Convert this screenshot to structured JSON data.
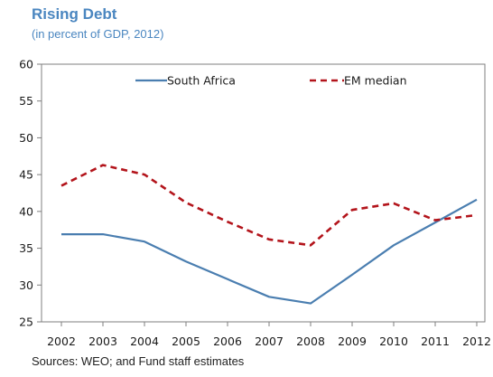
{
  "chart_data": {
    "type": "line",
    "title": "Rising Debt",
    "subtitle": "(in percent of GDP, 2012)",
    "source": "Sources: WEO; and Fund staff estimates",
    "x": [
      "2002",
      "2003",
      "2004",
      "2005",
      "2006",
      "2007",
      "2008",
      "2009",
      "2010",
      "2011",
      "2012"
    ],
    "ylim": [
      25,
      60
    ],
    "yticks": [
      25,
      30,
      35,
      40,
      45,
      50,
      55,
      60
    ],
    "grid": false,
    "legend_position": "top",
    "series": [
      {
        "name": "South Africa",
        "color": "#4a7eb0",
        "style": "solid",
        "values": [
          36.9,
          36.9,
          35.9,
          33.2,
          30.8,
          28.4,
          27.5,
          31.4,
          35.4,
          38.5,
          41.6
        ]
      },
      {
        "name": "EM median",
        "color": "#b3141b",
        "style": "dashed",
        "values": [
          43.5,
          46.3,
          45.0,
          41.2,
          38.6,
          36.2,
          35.4,
          40.2,
          41.1,
          38.8,
          39.5
        ]
      }
    ]
  }
}
